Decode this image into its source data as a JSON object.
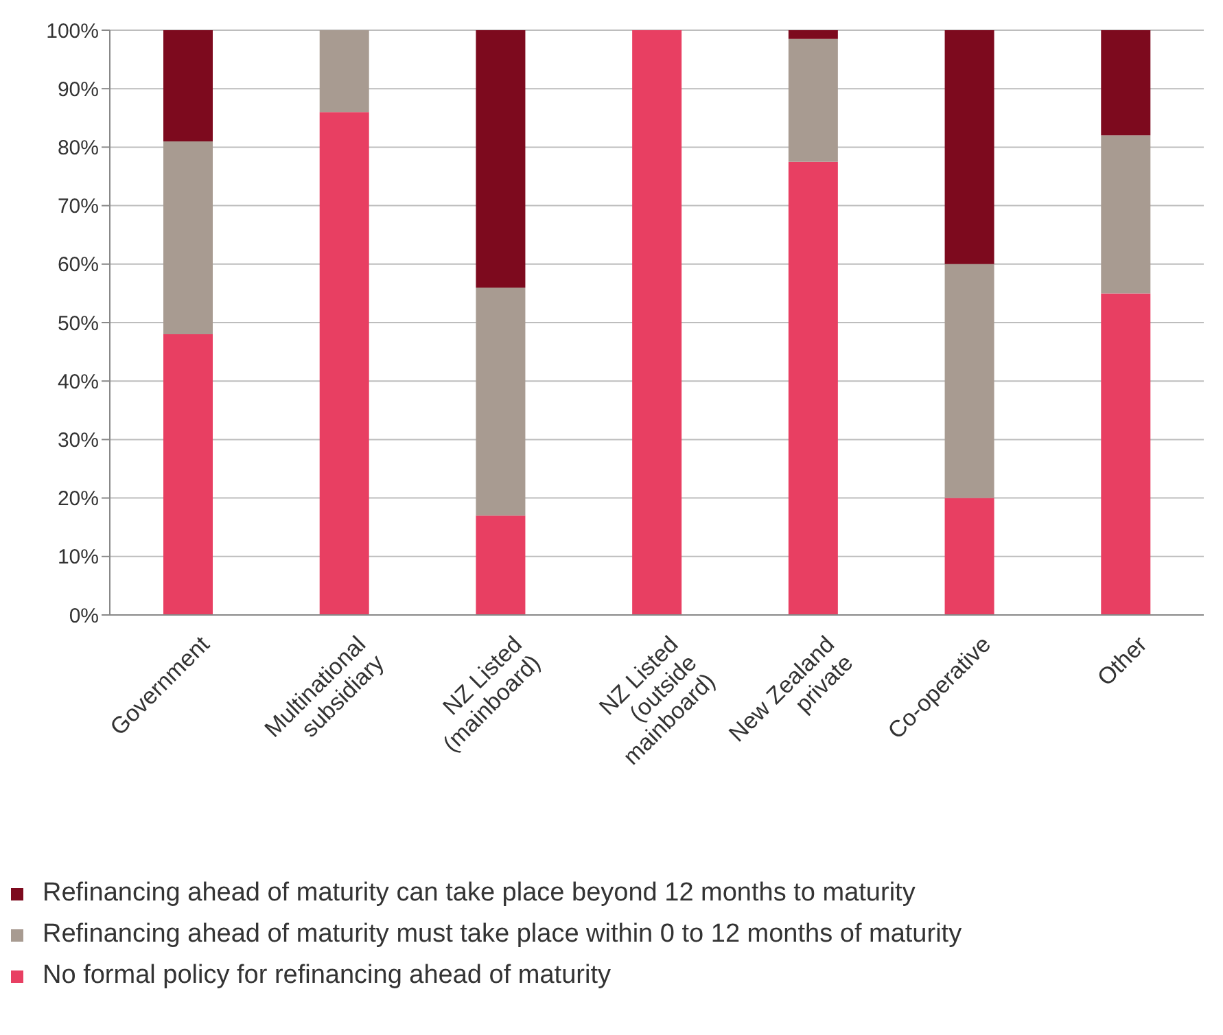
{
  "chart_data": {
    "type": "bar",
    "stacked": true,
    "categories": [
      "Government",
      "Multinational subsidiary",
      "NZ Listed (mainboard)",
      "NZ Listed (outside mainboard)",
      "New Zealand private",
      "Co-operative",
      "Other"
    ],
    "series": [
      {
        "name": "No formal policy for refinancing ahead of maturity",
        "color": "#e83f62",
        "values": [
          48,
          86,
          17,
          100,
          77.5,
          20,
          55
        ]
      },
      {
        "name": "Refinancing ahead of maturity must take place within 0 to 12 months of maturity",
        "color": "#a89b91",
        "values": [
          33,
          14,
          39,
          0,
          21,
          40,
          27
        ]
      },
      {
        "name": "Refinancing ahead of maturity can take place beyond 12 months to maturity",
        "color": "#7d0a1e",
        "values": [
          19,
          0,
          44,
          0,
          1.5,
          40,
          18
        ]
      }
    ],
    "ylim": [
      0,
      100
    ],
    "yticks": [
      {
        "value": 0,
        "label": "0%"
      },
      {
        "value": 10,
        "label": "10%"
      },
      {
        "value": 20,
        "label": "20%"
      },
      {
        "value": 30,
        "label": "30%"
      },
      {
        "value": 40,
        "label": "40%"
      },
      {
        "value": 50,
        "label": "50%"
      },
      {
        "value": 60,
        "label": "60%"
      },
      {
        "value": 70,
        "label": "70%"
      },
      {
        "value": 80,
        "label": "80%"
      },
      {
        "value": 90,
        "label": "90%"
      },
      {
        "value": 100,
        "label": "100%"
      }
    ],
    "grid": "y",
    "legend": "bottom"
  }
}
